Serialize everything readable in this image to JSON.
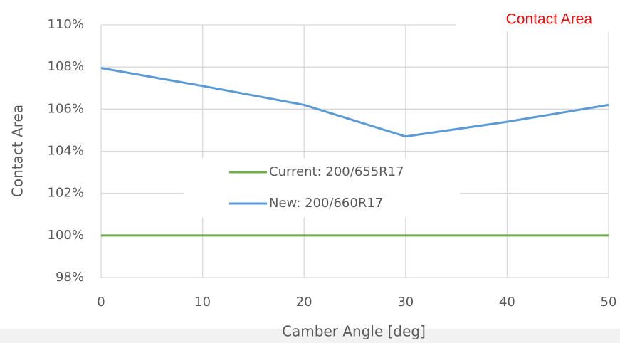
{
  "chart_data": {
    "type": "line",
    "title": "Contact Area",
    "x_label": "Camber Angle [deg]",
    "y_label": "Contact Area",
    "x": [
      0,
      10,
      20,
      30,
      40,
      50
    ],
    "series": [
      {
        "name": "Current: 200/655R17",
        "color": "#70ad47",
        "values": [
          100,
          100,
          100,
          100,
          100,
          100
        ]
      },
      {
        "name": "New: 200/660R17",
        "color": "#5b9bd5",
        "values": [
          107.95,
          107.1,
          106.2,
          104.7,
          105.4,
          106.2
        ]
      }
    ],
    "xlim": [
      0,
      50
    ],
    "xticks": [
      0,
      10,
      20,
      30,
      40,
      50
    ],
    "ylim": [
      98,
      110
    ],
    "yticks": [
      {
        "value": 98,
        "label": "98%"
      },
      {
        "value": 100,
        "label": "100%"
      },
      {
        "value": 102,
        "label": "102%"
      },
      {
        "value": 104,
        "label": "104%"
      },
      {
        "value": 106,
        "label": "106%"
      },
      {
        "value": 108,
        "label": "108%"
      },
      {
        "value": 110,
        "label": "110%"
      }
    ],
    "grid": true,
    "title_color": "#ff0000"
  }
}
